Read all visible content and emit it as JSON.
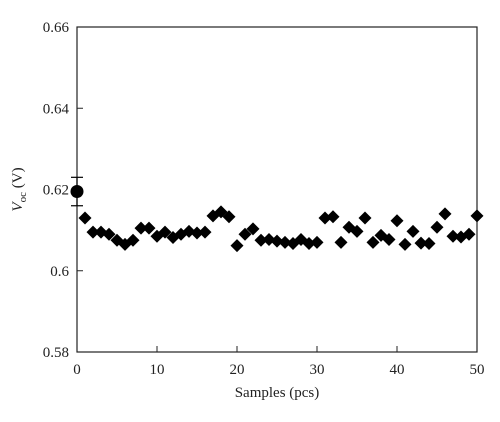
{
  "chart_data": {
    "type": "scatter",
    "xlabel": "Samples (pcs)",
    "ylabel_main": "V",
    "ylabel_sub": "oc",
    "ylabel_unit": " (V)",
    "xlim": [
      0,
      50
    ],
    "ylim": [
      0.58,
      0.66
    ],
    "x_ticks": [
      0,
      10,
      20,
      30,
      40,
      50
    ],
    "y_ticks": [
      0.58,
      0.6,
      0.62,
      0.64,
      0.66
    ],
    "x_tick_labels": [
      "0",
      "10",
      "20",
      "30",
      "40",
      "50"
    ],
    "y_tick_labels": [
      "0.58",
      "0.6",
      "0.62",
      "0.64",
      "0.66"
    ],
    "grid": false,
    "mean_point": {
      "x": 0,
      "y": 0.6195,
      "yerr": 0.0035,
      "xerr": 0.4
    },
    "series": [
      {
        "marker": "diamond",
        "x": [
          1,
          2,
          3,
          4,
          5,
          6,
          7,
          8,
          9,
          10,
          11,
          12,
          13,
          14,
          15,
          16,
          17,
          18,
          19,
          20,
          21,
          22,
          23,
          24,
          25,
          26,
          27,
          28,
          29,
          30,
          31,
          32,
          33,
          34,
          35,
          36,
          37,
          38,
          39,
          40,
          41,
          42,
          43,
          44,
          45,
          46,
          47,
          48,
          49,
          50
        ],
        "y": [
          0.613,
          0.6095,
          0.6095,
          0.609,
          0.6075,
          0.6065,
          0.6075,
          0.6105,
          0.6105,
          0.6085,
          0.6095,
          0.6082,
          0.609,
          0.6097,
          0.6093,
          0.6095,
          0.6135,
          0.6145,
          0.6133,
          0.6062,
          0.609,
          0.6103,
          0.6075,
          0.6077,
          0.6073,
          0.607,
          0.6067,
          0.6077,
          0.6067,
          0.607,
          0.613,
          0.6133,
          0.607,
          0.6107,
          0.6097,
          0.613,
          0.607,
          0.6087,
          0.6077,
          0.6123,
          0.6065,
          0.6097,
          0.6068,
          0.6067,
          0.6107,
          0.614,
          0.6085,
          0.6083,
          0.609,
          0.6135
        ]
      }
    ],
    "colors": {
      "marker": "#000000",
      "axis": "#222222"
    }
  }
}
